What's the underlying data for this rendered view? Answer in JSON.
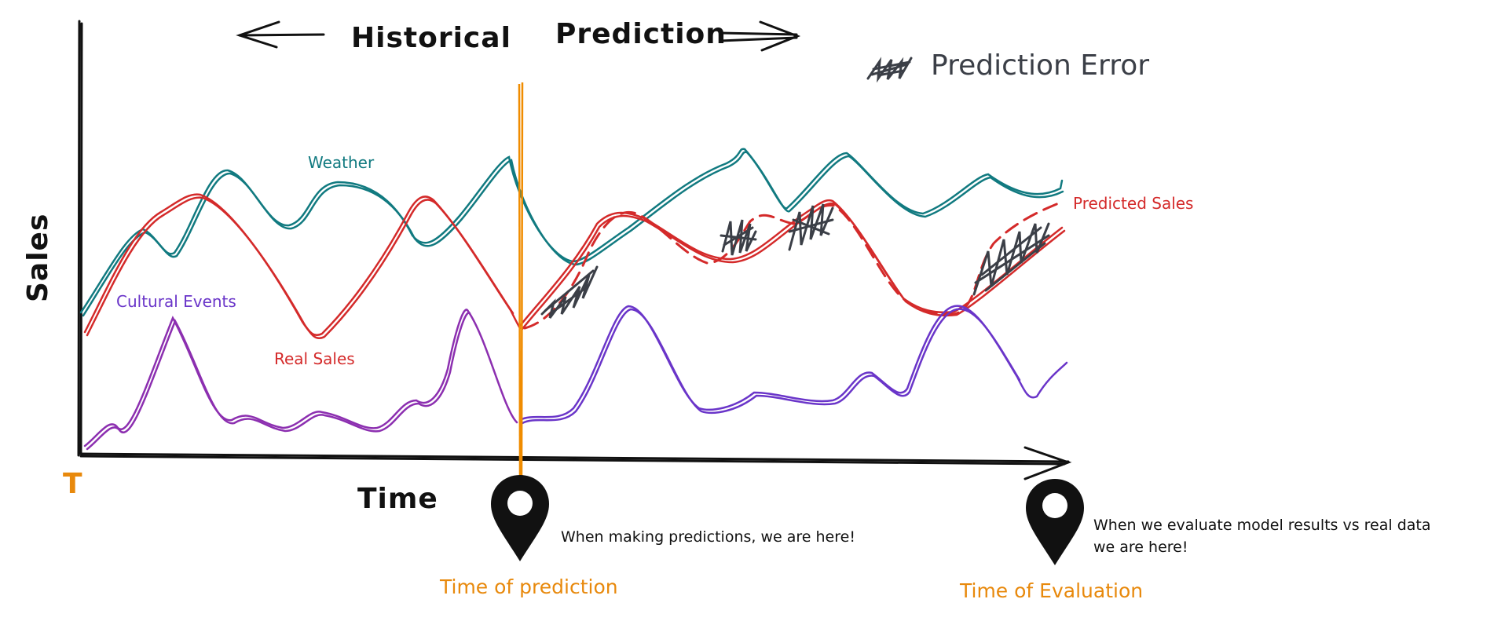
{
  "header": {
    "historical": "Historical",
    "prediction": "Prediction"
  },
  "legend": {
    "error_label": "Prediction Error"
  },
  "axes": {
    "y_label": "Sales",
    "x_label": "Time",
    "origin_label": "T"
  },
  "series": {
    "weather": "Weather",
    "cultural_events": "Cultural Events",
    "real_sales": "Real Sales",
    "predicted_sales": "Predicted Sales"
  },
  "markers": {
    "prediction": {
      "label": "Time of prediction",
      "note": "When making predictions, we are here!"
    },
    "evaluation": {
      "label": "Time of Evaluation",
      "note_line1": "When we evaluate model results vs real data",
      "note_line2": "we are here!"
    }
  },
  "colors": {
    "weather": "#117a80",
    "real_sales": "#d42a2a",
    "predicted_sales": "#d42a2a",
    "cultural_events": "#6a35c9",
    "cultural_events_historical": "#8c2fb0",
    "prediction_line": "#f08c00",
    "marker_text": "#e8890c",
    "error_fill": "#3b3f47",
    "ink": "#111111"
  }
}
